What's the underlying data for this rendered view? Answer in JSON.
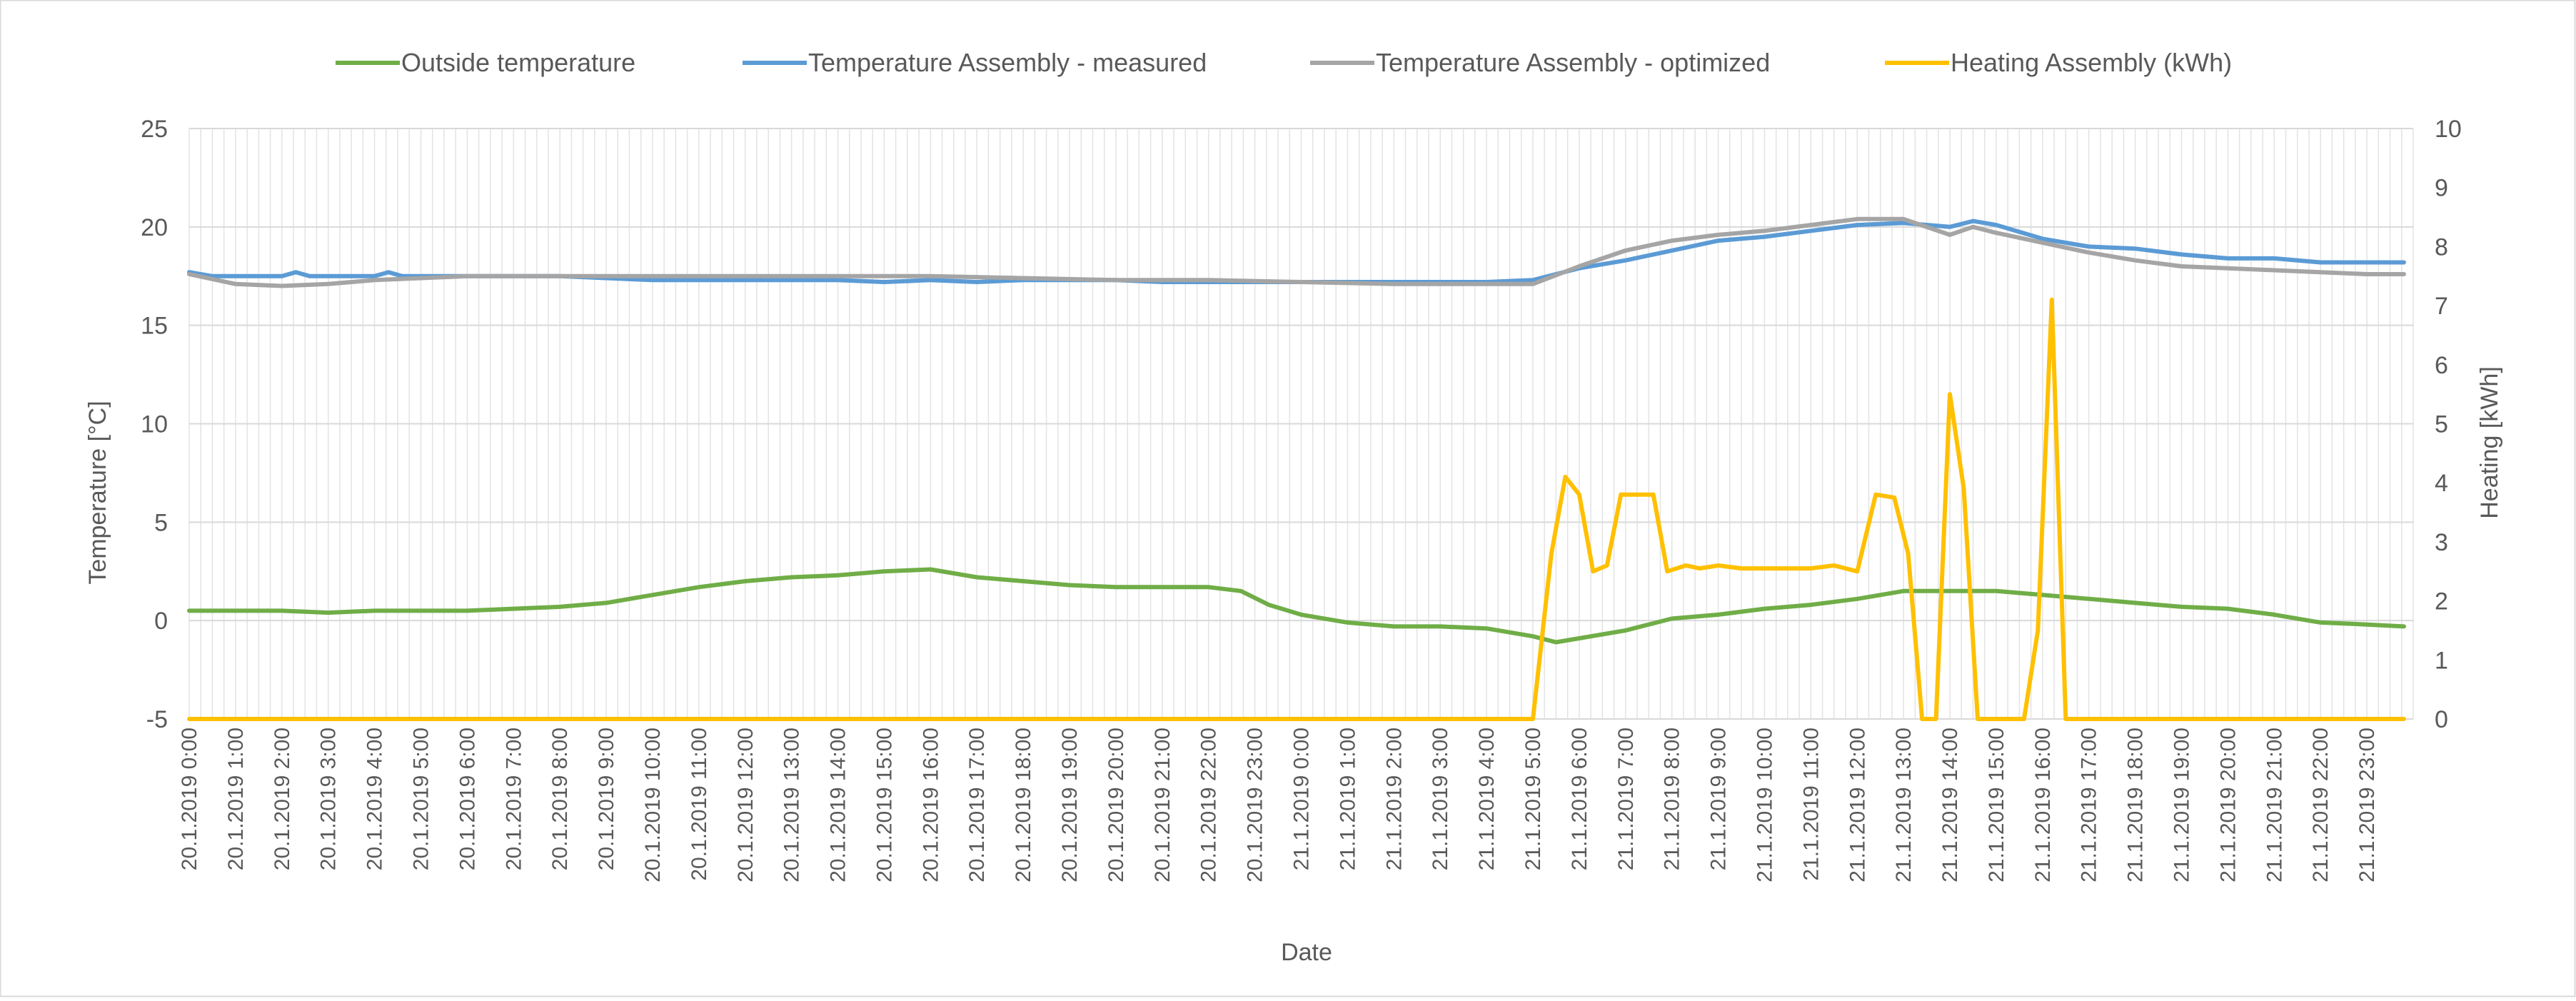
{
  "chart_data": {
    "type": "line",
    "title": "",
    "xlabel": "Date",
    "ylabel": "Temperature [°C]",
    "y2label": "Heating [kWh]",
    "ylim": [
      -5,
      25
    ],
    "y2lim": [
      0,
      10
    ],
    "yticks": [
      "25",
      "20",
      "15",
      "10",
      "5",
      "0",
      "-5"
    ],
    "y2ticks": [
      "10",
      "9",
      "8",
      "7",
      "6",
      "5",
      "4",
      "3",
      "2",
      "1",
      "0"
    ],
    "grid": true,
    "legend_position": "top",
    "x_hours": [
      0,
      48
    ],
    "x_tick_labels": [
      "20.1.2019 0:00",
      "20.1.2019 1:00",
      "20.1.2019 2:00",
      "20.1.2019 3:00",
      "20.1.2019 4:00",
      "20.1.2019 5:00",
      "20.1.2019 6:00",
      "20.1.2019 7:00",
      "20.1.2019 8:00",
      "20.1.2019 9:00",
      "20.1.2019 10:00",
      "20.1.2019 11:00",
      "20.1.2019 12:00",
      "20.1.2019 13:00",
      "20.1.2019 14:00",
      "20.1.2019 15:00",
      "20.1.2019 16:00",
      "20.1.2019 17:00",
      "20.1.2019 18:00",
      "20.1.2019 19:00",
      "20.1.2019 20:00",
      "20.1.2019 21:00",
      "20.1.2019 22:00",
      "20.1.2019 23:00",
      "21.1.2019 0:00",
      "21.1.2019 1:00",
      "21.1.2019 2:00",
      "21.1.2019 3:00",
      "21.1.2019 4:00",
      "21.1.2019 5:00",
      "21.1.2019 6:00",
      "21.1.2019 7:00",
      "21.1.2019 8:00",
      "21.1.2019 9:00",
      "21.1.2019 10:00",
      "21.1.2019 11:00",
      "21.1.2019 12:00",
      "21.1.2019 13:00",
      "21.1.2019 14:00",
      "21.1.2019 15:00",
      "21.1.2019 16:00",
      "21.1.2019 17:00",
      "21.1.2019 18:00",
      "21.1.2019 19:00",
      "21.1.2019 20:00",
      "21.1.2019 21:00",
      "21.1.2019 22:00",
      "21.1.2019 23:00"
    ],
    "series": [
      {
        "name": "Outside temperature",
        "color": "#70ad47",
        "axis": "left",
        "points": [
          [
            0,
            0.5
          ],
          [
            1,
            0.5
          ],
          [
            2,
            0.5
          ],
          [
            3,
            0.4
          ],
          [
            4,
            0.5
          ],
          [
            5,
            0.5
          ],
          [
            6,
            0.5
          ],
          [
            7,
            0.6
          ],
          [
            8,
            0.7
          ],
          [
            9,
            0.9
          ],
          [
            10,
            1.3
          ],
          [
            11,
            1.7
          ],
          [
            12,
            2.0
          ],
          [
            13,
            2.2
          ],
          [
            14,
            2.3
          ],
          [
            15,
            2.5
          ],
          [
            16,
            2.6
          ],
          [
            17,
            2.2
          ],
          [
            18,
            2.0
          ],
          [
            19,
            1.8
          ],
          [
            20,
            1.7
          ],
          [
            21,
            1.7
          ],
          [
            22,
            1.7
          ],
          [
            22.7,
            1.5
          ],
          [
            23.3,
            0.8
          ],
          [
            24,
            0.3
          ],
          [
            25,
            -0.1
          ],
          [
            26,
            -0.3
          ],
          [
            27,
            -0.3
          ],
          [
            28,
            -0.4
          ],
          [
            29,
            -0.8
          ],
          [
            29.5,
            -1.1
          ],
          [
            30,
            -0.9
          ],
          [
            31,
            -0.5
          ],
          [
            32,
            0.1
          ],
          [
            33,
            0.3
          ],
          [
            34,
            0.6
          ],
          [
            35,
            0.8
          ],
          [
            36,
            1.1
          ],
          [
            37,
            1.5
          ],
          [
            38,
            1.5
          ],
          [
            39,
            1.5
          ],
          [
            40,
            1.3
          ],
          [
            41,
            1.1
          ],
          [
            42,
            0.9
          ],
          [
            43,
            0.7
          ],
          [
            44,
            0.6
          ],
          [
            45,
            0.3
          ],
          [
            46,
            -0.1
          ],
          [
            47,
            -0.2
          ],
          [
            47.8,
            -0.3
          ]
        ]
      },
      {
        "name": "Temperature Assembly - measured",
        "color": "#5b9bd5",
        "axis": "left",
        "points": [
          [
            0,
            17.7
          ],
          [
            0.5,
            17.5
          ],
          [
            1,
            17.5
          ],
          [
            2,
            17.5
          ],
          [
            2.3,
            17.7
          ],
          [
            2.6,
            17.5
          ],
          [
            3,
            17.5
          ],
          [
            4,
            17.5
          ],
          [
            4.3,
            17.7
          ],
          [
            4.6,
            17.5
          ],
          [
            6,
            17.5
          ],
          [
            8,
            17.5
          ],
          [
            9,
            17.4
          ],
          [
            10,
            17.3
          ],
          [
            12,
            17.3
          ],
          [
            13,
            17.3
          ],
          [
            14,
            17.3
          ],
          [
            15,
            17.2
          ],
          [
            16,
            17.3
          ],
          [
            17,
            17.2
          ],
          [
            18,
            17.3
          ],
          [
            19,
            17.3
          ],
          [
            20,
            17.3
          ],
          [
            21,
            17.2
          ],
          [
            22,
            17.2
          ],
          [
            23,
            17.2
          ],
          [
            24,
            17.2
          ],
          [
            25,
            17.2
          ],
          [
            26,
            17.2
          ],
          [
            27,
            17.2
          ],
          [
            28,
            17.2
          ],
          [
            29,
            17.3
          ],
          [
            30,
            17.9
          ],
          [
            31,
            18.3
          ],
          [
            32,
            18.8
          ],
          [
            33,
            19.3
          ],
          [
            34,
            19.5
          ],
          [
            35,
            19.8
          ],
          [
            36,
            20.1
          ],
          [
            37,
            20.2
          ],
          [
            38,
            20.0
          ],
          [
            38.5,
            20.3
          ],
          [
            39,
            20.1
          ],
          [
            40,
            19.4
          ],
          [
            41,
            19.0
          ],
          [
            42,
            18.9
          ],
          [
            43,
            18.6
          ],
          [
            44,
            18.4
          ],
          [
            45,
            18.4
          ],
          [
            46,
            18.2
          ],
          [
            47,
            18.2
          ],
          [
            47.8,
            18.2
          ]
        ]
      },
      {
        "name": "Temperature Assembly - optimized",
        "color": "#a5a5a5",
        "axis": "left",
        "points": [
          [
            0,
            17.6
          ],
          [
            1,
            17.1
          ],
          [
            2,
            17.0
          ],
          [
            3,
            17.1
          ],
          [
            4,
            17.3
          ],
          [
            5,
            17.4
          ],
          [
            6,
            17.5
          ],
          [
            8,
            17.5
          ],
          [
            10,
            17.5
          ],
          [
            12,
            17.5
          ],
          [
            14,
            17.5
          ],
          [
            16,
            17.5
          ],
          [
            18,
            17.4
          ],
          [
            20,
            17.3
          ],
          [
            22,
            17.3
          ],
          [
            24,
            17.2
          ],
          [
            26,
            17.1
          ],
          [
            28,
            17.1
          ],
          [
            29,
            17.1
          ],
          [
            30,
            18.0
          ],
          [
            31,
            18.8
          ],
          [
            32,
            19.3
          ],
          [
            33,
            19.6
          ],
          [
            34,
            19.8
          ],
          [
            35,
            20.1
          ],
          [
            36,
            20.4
          ],
          [
            37,
            20.4
          ],
          [
            38,
            19.6
          ],
          [
            38.5,
            20.0
          ],
          [
            39,
            19.7
          ],
          [
            40,
            19.2
          ],
          [
            41,
            18.7
          ],
          [
            42,
            18.3
          ],
          [
            43,
            18.0
          ],
          [
            44,
            17.9
          ],
          [
            45,
            17.8
          ],
          [
            46,
            17.7
          ],
          [
            47,
            17.6
          ],
          [
            47.8,
            17.6
          ]
        ]
      },
      {
        "name": "Heating Assembly (kWh)",
        "color": "#ffc000",
        "axis": "right",
        "points": [
          [
            0,
            0
          ],
          [
            29,
            0
          ],
          [
            29.4,
            2.8
          ],
          [
            29.7,
            4.1
          ],
          [
            30,
            3.8
          ],
          [
            30.3,
            2.5
          ],
          [
            30.6,
            2.6
          ],
          [
            30.9,
            3.8
          ],
          [
            31.3,
            3.8
          ],
          [
            31.6,
            3.8
          ],
          [
            31.9,
            2.5
          ],
          [
            32.3,
            2.6
          ],
          [
            32.6,
            2.55
          ],
          [
            33,
            2.6
          ],
          [
            33.5,
            2.55
          ],
          [
            34,
            2.55
          ],
          [
            35,
            2.55
          ],
          [
            35.5,
            2.6
          ],
          [
            36,
            2.5
          ],
          [
            36.4,
            3.8
          ],
          [
            36.8,
            3.75
          ],
          [
            37.1,
            2.8
          ],
          [
            37.4,
            0
          ],
          [
            37.7,
            0
          ],
          [
            38,
            5.5
          ],
          [
            38.3,
            3.9
          ],
          [
            38.6,
            0
          ],
          [
            39.6,
            0
          ],
          [
            39.9,
            1.5
          ],
          [
            40.2,
            7.1
          ],
          [
            40.5,
            0
          ],
          [
            47.8,
            0
          ]
        ]
      }
    ]
  }
}
